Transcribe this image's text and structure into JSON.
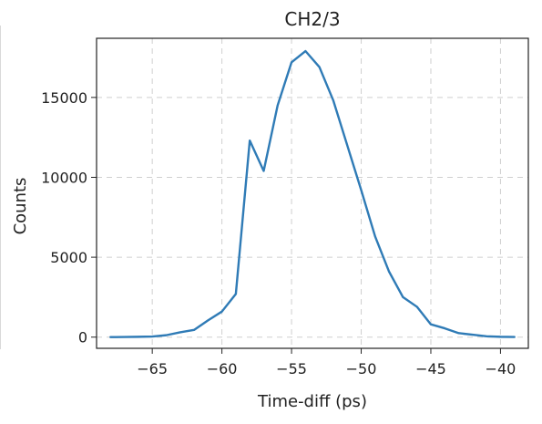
{
  "chart_data": {
    "type": "line",
    "title": "CH2/3",
    "xlabel": "Time-diff (ps)",
    "ylabel": "Counts",
    "xlim": [
      -69,
      -38
    ],
    "ylim": [
      -700,
      18700
    ],
    "xticks": [
      -65,
      -60,
      -55,
      -50,
      -45,
      -40
    ],
    "xtick_labels": [
      "−65",
      "−60",
      "−55",
      "−50",
      "−45",
      "−40"
    ],
    "yticks": [
      0,
      5000,
      10000,
      15000
    ],
    "ytick_labels": [
      "0",
      "5000",
      "10000",
      "15000"
    ],
    "grid": true,
    "series": [
      {
        "color": "#2f7bb6",
        "x": [
          -68,
          -67,
          -66,
          -65,
          -64,
          -63,
          -62,
          -61,
          -60,
          -59,
          -58,
          -57,
          -56,
          -55,
          -54,
          -53,
          -52,
          -51,
          -50,
          -49,
          -48,
          -47,
          -46,
          -45,
          -44,
          -43,
          -42,
          -41,
          -40,
          -39
        ],
        "y": [
          0,
          10,
          20,
          40,
          120,
          300,
          450,
          1050,
          1600,
          2700,
          12300,
          10400,
          14500,
          17200,
          17900,
          16900,
          14800,
          12000,
          9200,
          6300,
          4100,
          2500,
          1900,
          800,
          550,
          250,
          150,
          50,
          20,
          10
        ]
      }
    ]
  }
}
